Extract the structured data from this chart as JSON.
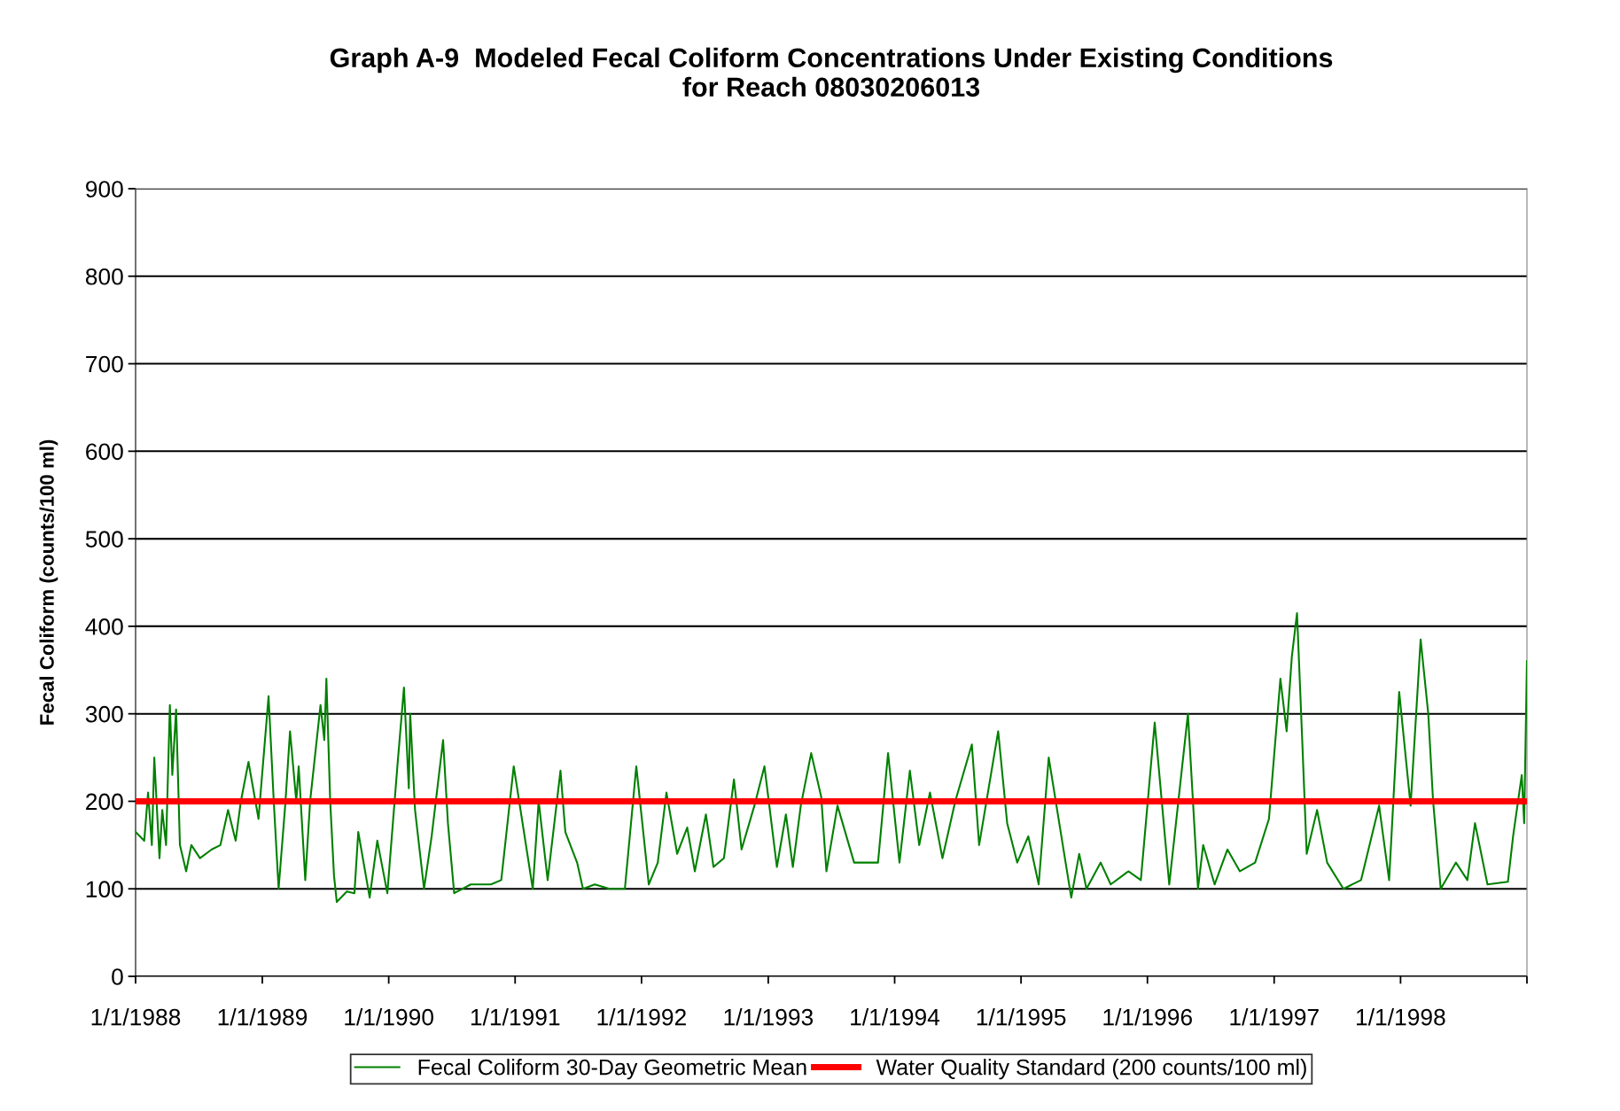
{
  "chart_data": {
    "type": "line",
    "title": "Graph A-9  Modeled Fecal Coliform Concentrations Under Existing Conditions\nfor Reach 08030206013",
    "ylabel": "Fecal Coliform (counts/100 ml)",
    "x": [
      "1988-01-01",
      "1988-01-26",
      "1988-02-06",
      "1988-02-17",
      "1988-02-24",
      "1988-03-10",
      "1988-03-18",
      "1988-03-29",
      "1988-04-09",
      "1988-04-16",
      "1988-04-27",
      "1988-05-08",
      "1988-05-26",
      "1988-06-10",
      "1988-07-05",
      "1988-08-08",
      "1988-09-02",
      "1988-09-24",
      "1988-10-16",
      "1988-10-31",
      "1988-11-22",
      "1988-12-21",
      "1989-01-19",
      "1989-02-03",
      "1989-02-17",
      "1989-03-08",
      "1989-03-22",
      "1989-04-09",
      "1989-04-16",
      "1989-05-05",
      "1989-05-19",
      "1989-06-18",
      "1989-06-29",
      "1989-07-05",
      "1989-07-16",
      "1989-07-27",
      "1989-08-04",
      "1989-09-02",
      "1989-09-24",
      "1989-10-05",
      "1989-11-07",
      "1989-11-29",
      "1989-12-28",
      "1990-01-26",
      "1990-02-14",
      "1990-02-28",
      "1990-03-04",
      "1990-03-18",
      "1990-04-13",
      "1990-05-05",
      "1990-06-07",
      "1990-06-21",
      "1990-07-09",
      "1990-08-26",
      "1990-10-23",
      "1990-11-22",
      "1990-12-28",
      "1991-02-21",
      "1991-03-10",
      "1991-04-05",
      "1991-05-12",
      "1991-05-26",
      "1991-06-29",
      "1991-07-16",
      "1991-08-19",
      "1991-10-01",
      "1991-11-14",
      "1991-12-17",
      "1992-01-22",
      "1992-02-17",
      "1992-03-13",
      "1992-04-13",
      "1992-05-12",
      "1992-06-03",
      "1992-07-05",
      "1992-07-27",
      "1992-08-26",
      "1992-09-24",
      "1992-10-16",
      "1992-11-22",
      "1992-12-21",
      "1993-01-26",
      "1993-02-21",
      "1993-03-13",
      "1993-04-05",
      "1993-05-05",
      "1993-06-03",
      "1993-06-18",
      "1993-07-20",
      "1993-09-06",
      "1993-11-14",
      "1993-12-13",
      "1994-01-15",
      "1994-02-14",
      "1994-03-13",
      "1994-04-13",
      "1994-05-19",
      "1994-06-25",
      "1994-08-12",
      "1994-09-02",
      "1994-10-27",
      "1994-11-22",
      "1994-12-21",
      "1995-01-22",
      "1995-02-21",
      "1995-03-22",
      "1995-05-26",
      "1995-06-18",
      "1995-07-09",
      "1995-08-19",
      "1995-09-17",
      "1995-11-07",
      "1995-12-13",
      "1996-01-22",
      "1996-03-04",
      "1996-04-27",
      "1996-05-26",
      "1996-06-10",
      "1996-07-13",
      "1996-08-19",
      "1996-09-24",
      "1996-11-07",
      "1996-12-17",
      "1997-01-19",
      "1997-02-06",
      "1997-02-21",
      "1997-03-08",
      "1997-03-22",
      "1997-04-05",
      "1997-05-05",
      "1997-06-03",
      "1997-07-20",
      "1997-09-09",
      "1997-10-31",
      "1997-11-29",
      "1997-12-28",
      "1998-01-30",
      "1998-02-28",
      "1998-03-22",
      "1998-04-05",
      "1998-04-27",
      "1998-06-10",
      "1998-07-13",
      "1998-08-04",
      "1998-09-09",
      "1998-11-07",
      "1998-11-22",
      "1998-12-17",
      "1998-12-24",
      "1999-01-01"
    ],
    "series": [
      {
        "name": "Fecal Coliform 30-Day Geometric Mean",
        "color": "#008000",
        "values": [
          165,
          155,
          210,
          150,
          250,
          135,
          190,
          150,
          310,
          230,
          305,
          150,
          120,
          150,
          135,
          145,
          150,
          190,
          155,
          200,
          245,
          180,
          320,
          200,
          100,
          195,
          280,
          200,
          240,
          110,
          200,
          310,
          270,
          340,
          200,
          115,
          85,
          97,
          95,
          165,
          90,
          155,
          95,
          240,
          330,
          215,
          300,
          190,
          100,
          160,
          270,
          175,
          95,
          105,
          105,
          110,
          240,
          100,
          200,
          110,
          235,
          165,
          130,
          100,
          105,
          100,
          100,
          240,
          105,
          130,
          210,
          140,
          170,
          120,
          185,
          125,
          135,
          225,
          145,
          195,
          240,
          125,
          185,
          125,
          195,
          255,
          205,
          120,
          195,
          130,
          130,
          255,
          130,
          235,
          150,
          210,
          135,
          200,
          265,
          150,
          280,
          175,
          130,
          160,
          105,
          250,
          90,
          140,
          100,
          130,
          105,
          120,
          110,
          290,
          105,
          300,
          100,
          150,
          105,
          145,
          120,
          130,
          180,
          340,
          280,
          365,
          415,
          280,
          140,
          190,
          130,
          100,
          110,
          195,
          110,
          325,
          195,
          385,
          300,
          200,
          100,
          130,
          110,
          175,
          105,
          108,
          160,
          230,
          175,
          360
        ]
      }
    ],
    "ref_lines": [
      {
        "axis": "y",
        "value": 200,
        "label": "Water Quality Standard (200 counts/100 ml)",
        "color": "#ff0000"
      }
    ],
    "xlim": [
      "1988-01-01",
      "1999-01-01"
    ],
    "xticks": [
      {
        "value": "1988-01-01",
        "label": "1/1/1988"
      },
      {
        "value": "1989-01-01",
        "label": "1/1/1989"
      },
      {
        "value": "1990-01-01",
        "label": "1/1/1990"
      },
      {
        "value": "1991-01-01",
        "label": "1/1/1991"
      },
      {
        "value": "1992-01-01",
        "label": "1/1/1992"
      },
      {
        "value": "1993-01-01",
        "label": "1/1/1993"
      },
      {
        "value": "1994-01-01",
        "label": "1/1/1994"
      },
      {
        "value": "1995-01-01",
        "label": "1/1/1995"
      },
      {
        "value": "1996-01-01",
        "label": "1/1/1996"
      },
      {
        "value": "1997-01-01",
        "label": "1/1/1997"
      },
      {
        "value": "1998-01-01",
        "label": "1/1/1998"
      },
      {
        "value": "1999-01-01",
        "label": null
      }
    ],
    "ylim": [
      0,
      900
    ],
    "yticks": [
      0,
      100,
      200,
      300,
      400,
      500,
      600,
      700,
      800,
      900
    ],
    "grid": "y",
    "legend": "bottom",
    "line_style": "solid",
    "marker": "none"
  }
}
